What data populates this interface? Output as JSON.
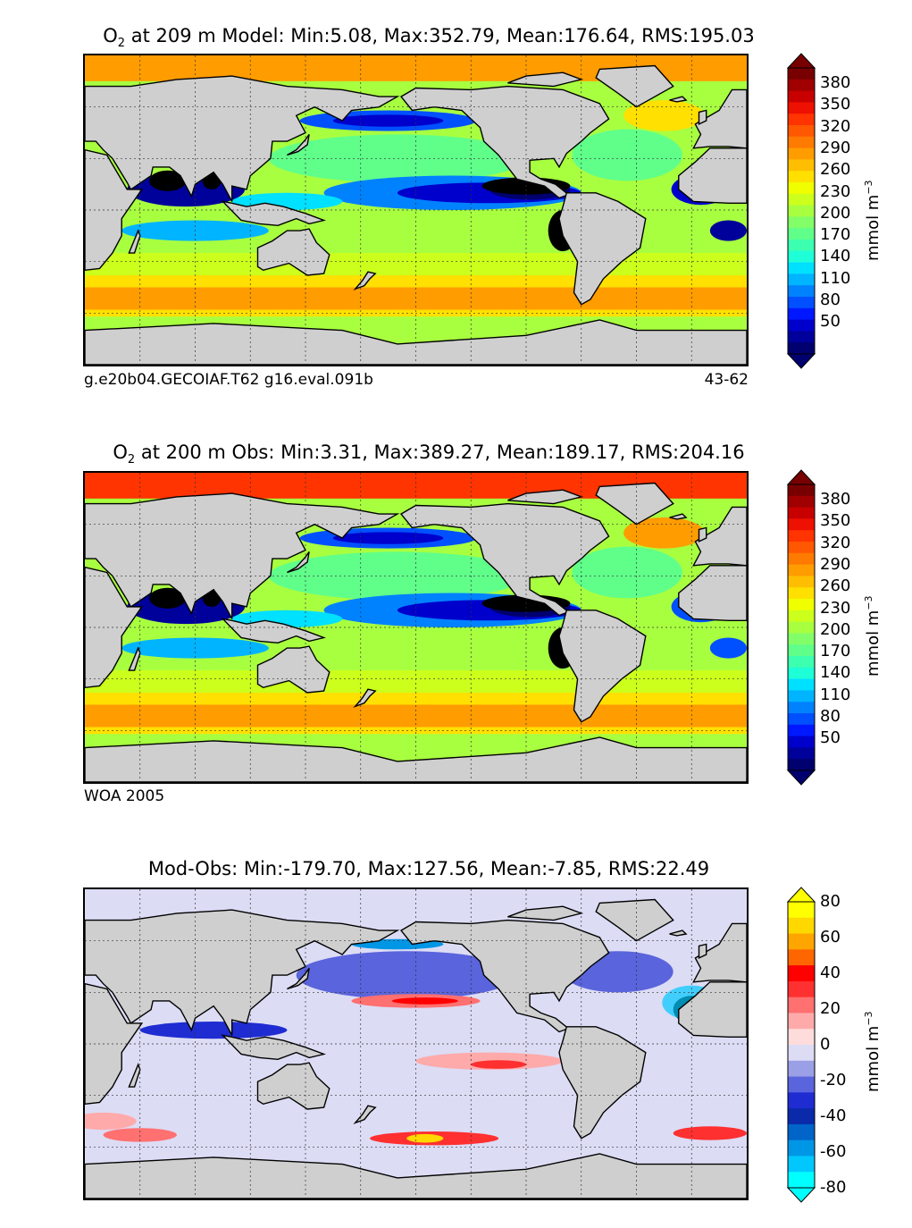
{
  "panels": [
    {
      "id": "model",
      "title_sym": "O",
      "title_sub": "2",
      "title_rest": " at 209 m Model: Min:5.08, Max:352.79, Mean:176.64, RMS:195.03",
      "caption_left": "g.e20b04.GECOIAF.T62 g16.eval.091b",
      "caption_right": "43-62",
      "colorbar_ticks": [
        "380",
        "350",
        "320",
        "290",
        "260",
        "230",
        "200",
        "170",
        "140",
        "110",
        "80",
        "50"
      ],
      "unit": "mmol m",
      "unit_exp": "−3"
    },
    {
      "id": "obs",
      "title_sym": "O",
      "title_sub": "2",
      "title_rest": " at 200 m Obs: Min:3.31, Max:389.27, Mean:189.17, RMS:204.16",
      "caption_left": "WOA 2005",
      "caption_right": "",
      "colorbar_ticks": [
        "380",
        "350",
        "320",
        "290",
        "260",
        "230",
        "200",
        "170",
        "140",
        "110",
        "80",
        "50"
      ],
      "unit": "mmol m",
      "unit_exp": "−3"
    },
    {
      "id": "diff",
      "title_sym": "",
      "title_sub": "",
      "title_rest": "Mod-Obs: Min:-179.70, Max:127.56, Mean:-7.85, RMS:22.49",
      "caption_left": "",
      "caption_right": "",
      "colorbar_ticks": [
        "80",
        "60",
        "40",
        "20",
        "0",
        "-20",
        "-40",
        "-60",
        "-80"
      ],
      "unit": "mmol m",
      "unit_exp": "−3"
    }
  ],
  "chart_data": [
    {
      "type": "heatmap",
      "title": "O2 at 209 m Model: Min:5.08, Max:352.79, Mean:176.64, RMS:195.03",
      "variable": "O2",
      "depth_m": 209,
      "source": "Model",
      "stats": {
        "min": 5.08,
        "max": 352.79,
        "mean": 176.64,
        "rms": 195.03
      },
      "colorbar": {
        "levels": [
          20,
          35,
          50,
          65,
          80,
          95,
          110,
          125,
          140,
          155,
          170,
          185,
          200,
          215,
          230,
          245,
          260,
          275,
          290,
          305,
          320,
          335,
          350,
          365,
          380,
          395
        ],
        "tick_labels": [
          50,
          80,
          110,
          140,
          170,
          200,
          230,
          260,
          290,
          320,
          350,
          380
        ],
        "extend": "both",
        "unit": "mmol m^-3"
      },
      "grid": true
    },
    {
      "type": "heatmap",
      "title": "O2 at 200 m Obs: Min:3.31, Max:389.27, Mean:189.17, RMS:204.16",
      "variable": "O2",
      "depth_m": 200,
      "source": "Obs",
      "stats": {
        "min": 3.31,
        "max": 389.27,
        "mean": 189.17,
        "rms": 204.16
      },
      "colorbar": {
        "levels": [
          20,
          35,
          50,
          65,
          80,
          95,
          110,
          125,
          140,
          155,
          170,
          185,
          200,
          215,
          230,
          245,
          260,
          275,
          290,
          305,
          320,
          335,
          350,
          365,
          380,
          395
        ],
        "tick_labels": [
          50,
          80,
          110,
          140,
          170,
          200,
          230,
          260,
          290,
          320,
          350,
          380
        ],
        "extend": "both",
        "unit": "mmol m^-3"
      },
      "grid": true
    },
    {
      "type": "heatmap",
      "title": "Mod-Obs: Min:-179.70, Max:127.56, Mean:-7.85, RMS:22.49",
      "stats": {
        "min": -179.7,
        "max": 127.56,
        "mean": -7.85,
        "rms": 22.49
      },
      "colorbar": {
        "levels": [
          -80,
          -70,
          -60,
          -50,
          -40,
          -30,
          -20,
          -10,
          0,
          10,
          20,
          30,
          40,
          50,
          60,
          70,
          80
        ],
        "tick_labels": [
          -80,
          -60,
          -40,
          -20,
          0,
          20,
          40,
          60,
          80
        ],
        "extend": "both",
        "unit": "mmol m^-3"
      },
      "grid": true
    }
  ],
  "colors": {
    "land": "#cfcfcf",
    "o2_scale": [
      "#00006e",
      "#00009a",
      "#0000cd",
      "#0018ff",
      "#0050ff",
      "#0082ff",
      "#00b4ff",
      "#00e0ff",
      "#1effd8",
      "#3cffb0",
      "#60ff8a",
      "#82ff68",
      "#a8ff40",
      "#ccff1c",
      "#f0ff00",
      "#ffe000",
      "#ffbe00",
      "#ff9c00",
      "#ff7a00",
      "#ff5800",
      "#ff3400",
      "#ee1000",
      "#c80000",
      "#a00000",
      "#780000"
    ],
    "diff_scale": [
      "#00ffff",
      "#00c8ff",
      "#0096e6",
      "#0064c8",
      "#0a2aaa",
      "#1e2cd2",
      "#5a64dc",
      "#9ba0e6",
      "#dcdcf5",
      "#ffdcdc",
      "#ffaaaa",
      "#ff7070",
      "#ff3030",
      "#ff0000",
      "#ff6600",
      "#ffa500",
      "#ffd800",
      "#ffff00"
    ]
  }
}
